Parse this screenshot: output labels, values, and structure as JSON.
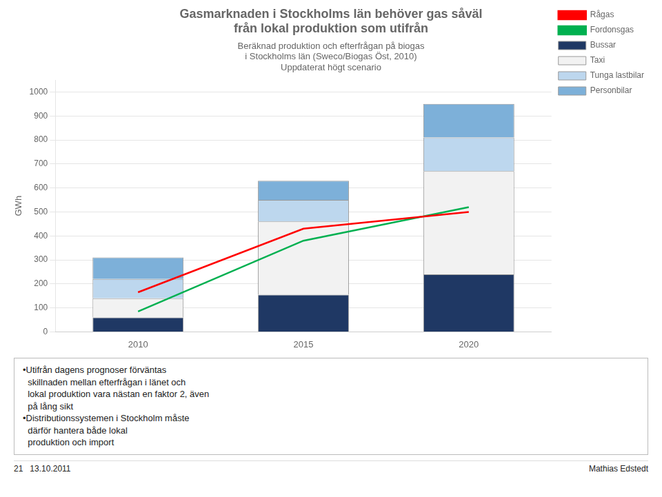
{
  "chart_data": {
    "type": "bar",
    "title": [
      "Gasmarknaden i Stockholms län behöver gas såväl",
      "från lokal produktion som utifrån"
    ],
    "subtitle": [
      "Beräknad produktion och efterfrågan på biogas",
      "i Stockholms län (Sweco/Biogas Öst, 2010)",
      "Uppdaterat högt scenario"
    ],
    "ylabel": "GWh",
    "categories": [
      "2010",
      "2015",
      "2020"
    ],
    "series": [
      {
        "name": "Bussar",
        "type": "bar",
        "color": "#1f3864",
        "values": [
          60,
          155,
          240
        ]
      },
      {
        "name": "Taxi",
        "type": "bar",
        "color": "#f2f2f2",
        "values": [
          80,
          305,
          430
        ]
      },
      {
        "name": "Tunga lastbilar",
        "type": "bar",
        "color": "#bdd7ee",
        "values": [
          80,
          90,
          140
        ]
      },
      {
        "name": "Personbilar",
        "type": "bar",
        "color": "#7db0d9",
        "values": [
          90,
          80,
          140
        ]
      },
      {
        "name": "Rågas",
        "type": "line",
        "color": "#ff0000",
        "values": [
          165,
          430,
          500
        ]
      },
      {
        "name": "Fordonsgas",
        "type": "line",
        "color": "#00b050",
        "values": [
          85,
          380,
          520
        ]
      }
    ],
    "stacked": true,
    "ylim": [
      0,
      1050
    ],
    "yticks": [
      0,
      100,
      200,
      300,
      400,
      500,
      600,
      700,
      800,
      900,
      1000
    ],
    "grid": true,
    "legend": "upper right",
    "annotations": [
      "•Utifrån dagens prognoser förväntas\n  skillnaden mellan efterfrågan i länet och\n  lokal produktion vara nästan en faktor 2, även\n  på lång sikt\n•Distributionssystemen i Stockholm måste\n  därför hantera både lokal\n  produktion och import",
      "21   13.10.2011",
      "Mathias Edstedt"
    ]
  }
}
